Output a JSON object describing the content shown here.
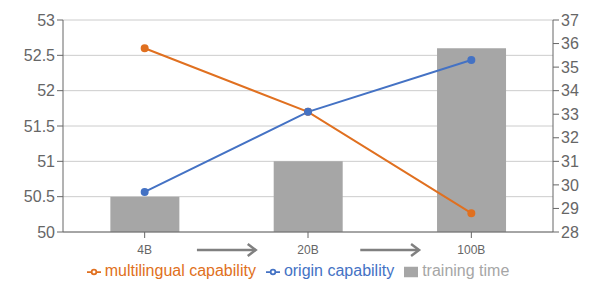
{
  "chart_data": {
    "type": "bar",
    "categories": [
      "4B",
      "20B",
      "100B"
    ],
    "series": [
      {
        "name": "training time",
        "type": "bar",
        "color": "#a6a6a6",
        "values": [
          50.5,
          51.0,
          52.6
        ]
      },
      {
        "name": "multilingual capability",
        "type": "line",
        "axis": "y2",
        "color": "#e07020",
        "marker": "o",
        "values": [
          35.8,
          33.1,
          28.8
        ]
      },
      {
        "name": "origin capability",
        "type": "line",
        "axis": "y2",
        "color": "#4472c4",
        "marker": "o",
        "values": [
          29.7,
          33.1,
          35.3
        ]
      }
    ],
    "ylim": [
      50,
      53
    ],
    "yticks": [
      50,
      50.5,
      51,
      51.5,
      52,
      52.5,
      53
    ],
    "y2lim": [
      28,
      37
    ],
    "y2ticks": [
      28,
      29,
      30,
      31,
      32,
      33,
      34,
      35,
      36,
      37
    ],
    "grid": true,
    "legend": "bottom"
  }
}
